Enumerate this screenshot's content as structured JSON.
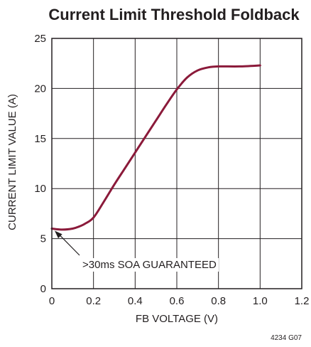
{
  "chart_data": {
    "type": "line",
    "title": "Current Limit Threshold Foldback",
    "xlabel": "FB VOLTAGE (V)",
    "ylabel": "CURRENT LIMIT VALUE (A)",
    "xlim": [
      0,
      1.2
    ],
    "ylim": [
      0,
      25
    ],
    "x_ticks": [
      0,
      0.2,
      0.4,
      0.6,
      0.8,
      1.0,
      1.2
    ],
    "x_tick_labels": [
      "0",
      "0.2",
      "0.4",
      "0.6",
      "0.8",
      "1.0",
      "1.2"
    ],
    "y_ticks": [
      0,
      5,
      10,
      15,
      20,
      25
    ],
    "y_tick_labels": [
      "0",
      "5",
      "10",
      "15",
      "20",
      "25"
    ],
    "grid": true,
    "series": [
      {
        "color": "#8b1a3a",
        "x": [
          0,
          0.05,
          0.1,
          0.13,
          0.16,
          0.2,
          0.25,
          0.3,
          0.35,
          0.4,
          0.45,
          0.5,
          0.55,
          0.6,
          0.65,
          0.7,
          0.75,
          0.8,
          0.9,
          1.0
        ],
        "y": [
          6.0,
          5.9,
          6.0,
          6.2,
          6.5,
          7.1,
          8.7,
          10.4,
          12.0,
          13.6,
          15.2,
          16.8,
          18.4,
          19.9,
          21.1,
          21.8,
          22.1,
          22.2,
          22.2,
          22.3
        ]
      }
    ],
    "annotations": [
      {
        "text": ">30ms SOA GUARANTEED",
        "points_to": [
          0,
          6.0
        ]
      }
    ]
  },
  "figure_id": "4234 G07"
}
